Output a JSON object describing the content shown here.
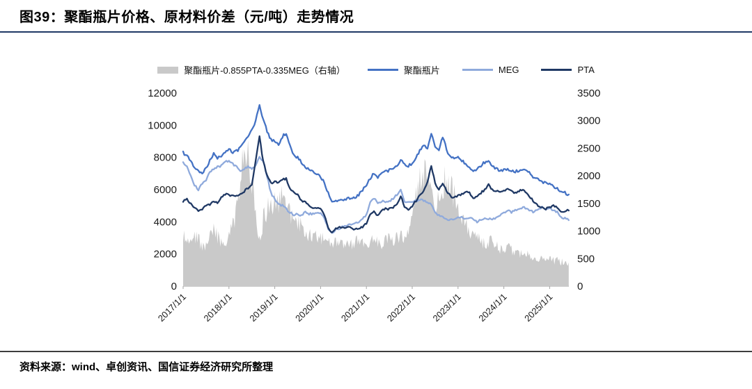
{
  "header": {
    "title": "图39：聚酯瓶片价格、原材料价差（元/吨）走势情况"
  },
  "footer": {
    "source": "资料来源：wind、卓创资讯、国信证券经济研究所整理"
  },
  "chart_data": {
    "type": "line",
    "title": "聚酯瓶片价格、原材料价差（元/吨）走势情况",
    "legend_position": "top",
    "grid": false,
    "x_start": 2017.0,
    "x_step": 0.0833333,
    "x_range": [
      2017.0,
      2025.42
    ],
    "x_ticks": [
      "2017/1/1",
      "2018/1/1",
      "2019/1/1",
      "2020/1/1",
      "2021/1/1",
      "2022/1/1",
      "2023/1/1",
      "2024/1/1",
      "2025/1/1"
    ],
    "x_tick_values": [
      2017,
      2018,
      2019,
      2020,
      2021,
      2022,
      2023,
      2024,
      2025
    ],
    "left_axis": {
      "range": [
        0,
        12000
      ],
      "ticks": [
        0,
        2000,
        4000,
        6000,
        8000,
        10000,
        12000
      ]
    },
    "right_axis": {
      "range": [
        0,
        3500
      ],
      "ticks": [
        0,
        500,
        1000,
        1500,
        2000,
        2500,
        3000,
        3500
      ]
    },
    "series": [
      {
        "id": "spread",
        "name": "聚酯瓶片-0.855PTA-0.335MEG（右轴）",
        "type": "area",
        "axis": "right",
        "color": "#c9c9c9",
        "noise": 0.27,
        "values": [
          1050,
          1000,
          1100,
          1050,
          1000,
          800,
          850,
          1000,
          1150,
          1050,
          900,
          850,
          1050,
          1250,
          1600,
          2200,
          3000,
          2750,
          2200,
          1500,
          1000,
          1400,
          1600,
          1700,
          1800,
          1750,
          1900,
          1700,
          1500,
          1400,
          1300,
          1250,
          1150,
          1100,
          1050,
          1000,
          1000,
          950,
          900,
          850,
          900,
          880,
          850,
          900,
          870,
          900,
          950,
          950,
          900,
          950,
          1000,
          950,
          900,
          950,
          1000,
          950,
          1000,
          1050,
          1000,
          1050,
          1600,
          1900,
          2200,
          2400,
          2200,
          1900,
          1600,
          1800,
          2100,
          2300,
          2100,
          1900,
          1600,
          1400,
          1300,
          1150,
          1050,
          1000,
          950,
          900,
          950,
          900,
          850,
          800,
          780,
          800,
          760,
          720,
          700,
          680,
          700,
          660,
          620,
          600,
          580,
          560,
          560,
          530,
          550,
          510,
          490,
          500
        ]
      },
      {
        "id": "bottle-chip",
        "name": "聚酯瓶片",
        "type": "line",
        "axis": "left",
        "color": "#4472c4",
        "noise": 90,
        "values": [
          8300,
          8100,
          7800,
          7400,
          7100,
          7000,
          7300,
          7800,
          8200,
          8000,
          8100,
          8300,
          8500,
          8300,
          8400,
          8600,
          9000,
          9300,
          9700,
          10300,
          11200,
          10400,
          9600,
          9100,
          9000,
          8800,
          9300,
          9500,
          8700,
          8100,
          8000,
          7700,
          7400,
          7200,
          7100,
          7000,
          6800,
          6400,
          5800,
          5200,
          5300,
          5400,
          5300,
          5500,
          5400,
          5500,
          5700,
          6000,
          6200,
          6700,
          7000,
          6800,
          7000,
          7100,
          7200,
          7300,
          7500,
          7900,
          7600,
          7500,
          7600,
          8000,
          8400,
          8800,
          8600,
          9500,
          8700,
          8400,
          9300,
          8500,
          8000,
          7900,
          8000,
          7800,
          7600,
          7400,
          7100,
          7300,
          7500,
          7700,
          7800,
          7500,
          7300,
          7200,
          7200,
          7300,
          7200,
          7100,
          7200,
          7300,
          7200,
          7000,
          6700,
          6600,
          6500,
          6400,
          6300,
          6200,
          6100,
          5900,
          5800,
          5700
        ]
      },
      {
        "id": "meg",
        "name": "MEG",
        "type": "line",
        "axis": "left",
        "color": "#8faadc",
        "noise": 65,
        "values": [
          7700,
          7400,
          6800,
          6300,
          6000,
          6400,
          6600,
          7100,
          7300,
          7400,
          7500,
          7700,
          7800,
          7600,
          7400,
          7200,
          7300,
          7400,
          7300,
          7500,
          8000,
          7800,
          6800,
          5800,
          5400,
          5100,
          5000,
          4800,
          4600,
          4400,
          4500,
          4400,
          4600,
          4500,
          4500,
          4600,
          4500,
          4200,
          3600,
          3300,
          3500,
          3600,
          3700,
          3800,
          3800,
          3900,
          4000,
          4200,
          4400,
          5200,
          5500,
          5100,
          5300,
          5200,
          5300,
          5400,
          5700,
          6000,
          5300,
          5200,
          5200,
          5300,
          5400,
          5300,
          5200,
          5100,
          4600,
          4400,
          4300,
          4200,
          4100,
          4200,
          4300,
          4300,
          4200,
          4300,
          4100,
          4000,
          4100,
          4200,
          4200,
          4100,
          4300,
          4400,
          4600,
          4700,
          4600,
          4700,
          4800,
          4900,
          4800,
          4700,
          4600,
          4800,
          4900,
          4800,
          4800,
          4700,
          4600,
          4300,
          4200,
          4100
        ]
      },
      {
        "id": "pta",
        "name": "PTA",
        "type": "line",
        "axis": "left",
        "color": "#1f3864",
        "noise": 65,
        "values": [
          5300,
          5400,
          5100,
          4900,
          4700,
          4800,
          5000,
          5100,
          5300,
          5200,
          5500,
          5700,
          5700,
          5600,
          5600,
          5700,
          5900,
          6100,
          6300,
          7800,
          9300,
          7700,
          6900,
          6400,
          6500,
          6400,
          6600,
          6700,
          6000,
          5800,
          5700,
          5300,
          5200,
          5000,
          4800,
          4900,
          4800,
          4400,
          3600,
          3300,
          3600,
          3700,
          3600,
          3700,
          3600,
          3500,
          3600,
          3700,
          3900,
          4400,
          4600,
          4400,
          4700,
          4800,
          4800,
          4900,
          5100,
          5600,
          4900,
          4700,
          5000,
          5300,
          5700,
          5900,
          6500,
          7500,
          6400,
          6000,
          6400,
          5900,
          5600,
          5500,
          5600,
          5700,
          5900,
          5800,
          5400,
          5600,
          5800,
          6000,
          6300,
          6000,
          5900,
          5900,
          5900,
          6000,
          5900,
          5800,
          5900,
          6000,
          5800,
          5500,
          5200,
          5000,
          4900,
          4800,
          4900,
          5000,
          4900,
          4600,
          4700,
          4700
        ]
      }
    ]
  }
}
